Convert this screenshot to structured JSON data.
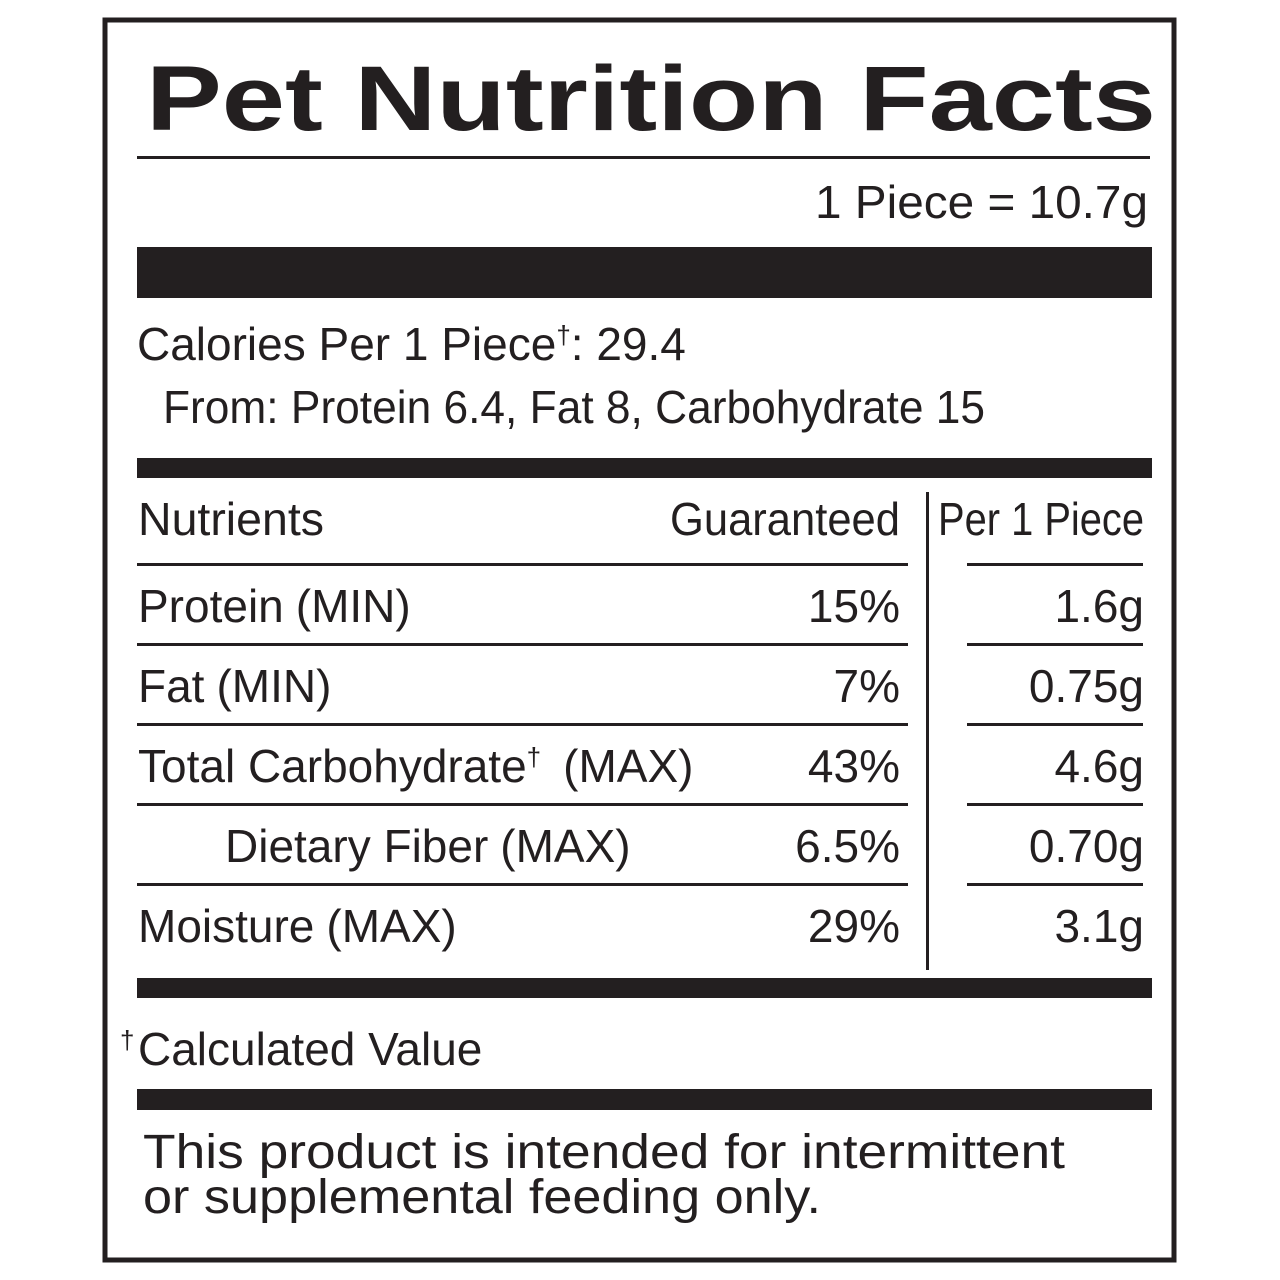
{
  "title": "Pet Nutrition Facts",
  "serving": "1 Piece = 10.7g",
  "calories": {
    "label": "Calories Per 1 Piece",
    "mark": "†",
    "value": ": 29.4"
  },
  "from": "From: Protein 6.4, Fat 8, Carbohydrate 15",
  "table": {
    "header": [
      "Nutrients",
      "Guaranteed",
      "Per 1 Piece"
    ],
    "rows": [
      {
        "name": "Protein",
        "qualifier": "(MIN)",
        "guaranteed": "15%",
        "per_piece": "1.6g"
      },
      {
        "name": "Fat",
        "qualifier": "(MIN)",
        "guaranteed": "7%",
        "per_piece": "0.75g"
      },
      {
        "name": "Total Carbohydrate",
        "mark": "†",
        "qualifier": "(MAX)",
        "guaranteed": "43%",
        "per_piece": "4.6g"
      },
      {
        "name": "Dietary Fiber",
        "qualifier": "(MAX)",
        "guaranteed": "6.5%",
        "per_piece": "0.70g"
      },
      {
        "name": "Moisture",
        "qualifier": "(MAX)",
        "guaranteed": "29%",
        "per_piece": "3.1g"
      }
    ]
  },
  "footnote": {
    "mark": "†",
    "text": "Calculated Value"
  },
  "disclaimer": [
    "This product is intended for intermittent",
    "or supplemental feeding only."
  ]
}
